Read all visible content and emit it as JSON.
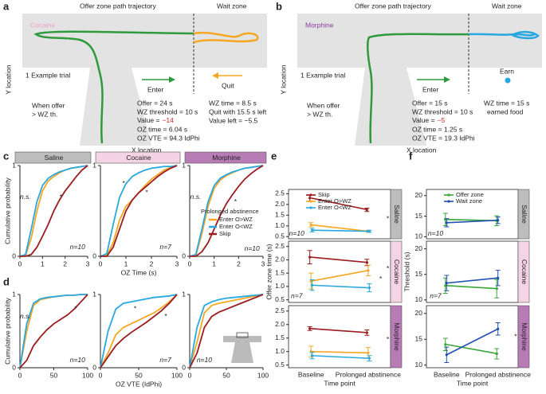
{
  "panel_labels": [
    "a",
    "b",
    "c",
    "d",
    "e",
    "f"
  ],
  "diagrams": [
    {
      "title": "Offer zone path trajectory",
      "wait_title": "Wait zone",
      "drug": "Cocaine",
      "trial": "1 Example trial",
      "enter": "Enter",
      "outcome": "Quit",
      "when": [
        "When offer",
        "> WZ th."
      ],
      "offer_info": [
        "Offer = 24 s",
        "WZ threshold = 10 s",
        "OZ time = 6.04 s",
        "OZ VTE = 94.3 IdPhi"
      ],
      "value_label": "Value =",
      "value": "−14",
      "wait_info": [
        "WZ time = 8.5 s",
        "Quit with 15.5 s left",
        "Value left = −5.5"
      ],
      "xlabel": "X location",
      "ylabel": "Y location"
    },
    {
      "title": "Offer zone path trajectory",
      "wait_title": "Wait zone",
      "drug": "Morphine",
      "trial": "1 Example trial",
      "enter": "Enter",
      "outcome": "Earn",
      "when": [
        "When offer",
        "> WZ th."
      ],
      "offer_info": [
        "Offer = 15 s",
        "WZ threshold = 10 s",
        "OZ time = 1.25 s",
        "OZ VTE = 19.3 IdPhi"
      ],
      "value_label": "Value =",
      "value": "−5",
      "wait_info": [
        "WZ time = 15 s",
        "earned food"
      ],
      "xlabel": "X location",
      "ylabel": "Y location"
    }
  ],
  "chart_data": [
    {
      "type": "line",
      "title": "Saline",
      "title_color": "#bdbdbd",
      "ylabel": "Cumulative probability",
      "x": [
        0,
        0.25,
        0.5,
        0.75,
        1,
        1.25,
        1.5,
        1.75,
        2,
        2.25,
        2.5,
        2.75,
        3
      ],
      "xlim": [
        0,
        3
      ],
      "xticks": [
        0,
        1,
        2,
        3
      ],
      "ylim": [
        0,
        1
      ],
      "yticks": [
        0,
        1
      ],
      "series": [
        {
          "color": "#f5a623",
          "values": [
            0,
            0.01,
            0.2,
            0.5,
            0.72,
            0.83,
            0.88,
            0.92,
            0.95,
            0.97,
            0.98,
            0.99,
            1
          ]
        },
        {
          "color": "#29a8e0",
          "values": [
            0,
            0.02,
            0.3,
            0.6,
            0.78,
            0.86,
            0.9,
            0.93,
            0.95,
            0.97,
            0.98,
            0.99,
            1
          ]
        },
        {
          "color": "#9b1b1e",
          "values": [
            0,
            0,
            0.02,
            0.1,
            0.22,
            0.35,
            0.5,
            0.62,
            0.72,
            0.8,
            0.88,
            0.95,
            1
          ]
        }
      ],
      "annotations": [
        "n.s.",
        "*",
        "n=10"
      ]
    },
    {
      "type": "line",
      "title": "Cocaine",
      "title_color": "#f4d4e4",
      "xlabel": "OZ Time (s)",
      "x": [
        0,
        0.25,
        0.5,
        0.75,
        1,
        1.25,
        1.5,
        1.75,
        2,
        2.25,
        2.5,
        2.75,
        3
      ],
      "xlim": [
        0,
        3
      ],
      "xticks": [
        0,
        1,
        2,
        3
      ],
      "ylim": [
        0,
        1
      ],
      "yticks": [
        0,
        1
      ],
      "series": [
        {
          "color": "#f5a623",
          "values": [
            0,
            0.01,
            0.15,
            0.4,
            0.55,
            0.62,
            0.7,
            0.78,
            0.85,
            0.9,
            0.95,
            0.98,
            1
          ]
        },
        {
          "color": "#29a8e0",
          "values": [
            0,
            0.03,
            0.35,
            0.65,
            0.8,
            0.88,
            0.92,
            0.95,
            0.97,
            0.98,
            0.99,
            0.99,
            1
          ]
        },
        {
          "color": "#9b1b1e",
          "values": [
            0,
            0,
            0.1,
            0.3,
            0.5,
            0.62,
            0.7,
            0.76,
            0.82,
            0.88,
            0.93,
            0.97,
            1
          ]
        }
      ],
      "annotations": [
        "*",
        "*",
        "n=7"
      ]
    },
    {
      "type": "line",
      "title": "Morphine",
      "title_color": "#b77bb5",
      "legend_title": "Prolonged abstinence",
      "x": [
        0,
        0.25,
        0.5,
        0.75,
        1,
        1.25,
        1.5,
        1.75,
        2,
        2.25,
        2.5,
        2.75,
        3
      ],
      "xlim": [
        0,
        3
      ],
      "xticks": [
        0,
        1,
        2,
        3
      ],
      "ylim": [
        0,
        1
      ],
      "yticks": [
        0,
        1
      ],
      "series": [
        {
          "name": "Enter O>WZ",
          "color": "#f5a623",
          "values": [
            0,
            0.01,
            0.25,
            0.55,
            0.75,
            0.84,
            0.89,
            0.92,
            0.95,
            0.97,
            0.98,
            0.99,
            1
          ]
        },
        {
          "name": "Enter O<WZ",
          "color": "#29a8e0",
          "values": [
            0,
            0.02,
            0.3,
            0.6,
            0.78,
            0.86,
            0.9,
            0.93,
            0.95,
            0.97,
            0.98,
            0.99,
            1
          ]
        },
        {
          "name": "Skip",
          "color": "#9b1b1e",
          "values": [
            0,
            0,
            0.05,
            0.15,
            0.3,
            0.45,
            0.58,
            0.68,
            0.77,
            0.85,
            0.91,
            0.96,
            1
          ]
        }
      ],
      "annotations": [
        "n.s.",
        "*",
        "n=10"
      ]
    },
    {
      "type": "line",
      "ylabel": "Cumulative probability",
      "x": [
        0,
        10,
        20,
        30,
        40,
        50,
        60,
        70,
        80,
        90,
        100
      ],
      "xlim": [
        0,
        100
      ],
      "xticks": [
        0,
        50,
        100
      ],
      "ylim": [
        0,
        1
      ],
      "yticks": [
        0,
        1
      ],
      "series": [
        {
          "color": "#f5a623",
          "values": [
            0,
            0.5,
            0.85,
            0.93,
            0.95,
            0.97,
            0.98,
            0.99,
            0.99,
            1,
            1
          ]
        },
        {
          "color": "#29a8e0",
          "values": [
            0,
            0.6,
            0.88,
            0.94,
            0.96,
            0.97,
            0.98,
            0.99,
            0.99,
            1,
            1
          ]
        },
        {
          "color": "#9b1b1e",
          "values": [
            0,
            0.1,
            0.3,
            0.42,
            0.52,
            0.6,
            0.66,
            0.72,
            0.8,
            0.9,
            1
          ]
        }
      ],
      "annotations": [
        "n.s.",
        "*",
        "n=10"
      ]
    },
    {
      "type": "line",
      "xlabel": "OZ VTE (IdPhi)",
      "x": [
        0,
        10,
        20,
        30,
        40,
        50,
        60,
        70,
        80,
        90,
        100
      ],
      "xlim": [
        0,
        100
      ],
      "xticks": [
        0,
        50,
        100
      ],
      "ylim": [
        0,
        1
      ],
      "yticks": [
        0,
        1
      ],
      "series": [
        {
          "color": "#f5a623",
          "values": [
            0,
            0.2,
            0.45,
            0.55,
            0.6,
            0.65,
            0.7,
            0.75,
            0.82,
            0.9,
            1
          ]
        },
        {
          "color": "#29a8e0",
          "values": [
            0,
            0.5,
            0.8,
            0.88,
            0.9,
            0.92,
            0.94,
            0.96,
            0.97,
            0.98,
            1
          ]
        },
        {
          "color": "#9b1b1e",
          "values": [
            0,
            0.15,
            0.3,
            0.4,
            0.48,
            0.55,
            0.62,
            0.7,
            0.78,
            0.88,
            1
          ]
        }
      ],
      "annotations": [
        "*",
        "*",
        "n=7"
      ]
    },
    {
      "type": "line",
      "x": [
        0,
        10,
        20,
        30,
        40,
        50,
        60,
        70,
        80,
        90,
        100
      ],
      "xlim": [
        0,
        100
      ],
      "xticks": [
        0,
        50,
        100
      ],
      "ylim": [
        0,
        1
      ],
      "yticks": [
        0,
        1
      ],
      "series": [
        {
          "color": "#f5a623",
          "values": [
            0,
            0.35,
            0.75,
            0.85,
            0.88,
            0.9,
            0.92,
            0.94,
            0.96,
            0.98,
            1
          ]
        },
        {
          "color": "#29a8e0",
          "values": [
            0,
            0.55,
            0.85,
            0.9,
            0.93,
            0.95,
            0.96,
            0.97,
            0.98,
            0.99,
            1
          ]
        },
        {
          "color": "#9b1b1e",
          "values": [
            0,
            0.2,
            0.55,
            0.7,
            0.76,
            0.8,
            0.84,
            0.88,
            0.92,
            0.96,
            1
          ]
        }
      ],
      "annotations": [
        "n=10"
      ]
    },
    {
      "type": "errorbar",
      "condition": "Saline",
      "condition_color": "#bdbdbd",
      "ylim": [
        0.4,
        2.7
      ],
      "yticks": [
        {
          "value": 0.5,
          "label": "0.5"
        },
        {
          "value": 1,
          "label": "1.0"
        },
        {
          "value": 1.5,
          "label": "1.5"
        },
        {
          "value": 2,
          "label": "2.0"
        },
        {
          "value": 2.5,
          "label": "2.5"
        }
      ],
      "series": [
        {
          "name": "Skip",
          "color": "#9b1b1e",
          "values": [
            2.3,
            1.75
          ],
          "errors": [
            0.15,
            0.08
          ]
        },
        {
          "name": "Enter O>WZ",
          "color": "#f5a623",
          "values": [
            1.05,
            0.75
          ],
          "errors": [
            0.1,
            0.05
          ]
        },
        {
          "name": "Enter O<WZ",
          "color": "#29a8e0",
          "values": [
            0.8,
            0.75
          ],
          "errors": [
            0.08,
            0.05
          ]
        }
      ],
      "annotations": [
        "*",
        "n=10"
      ]
    },
    {
      "type": "errorbar",
      "condition": "Cocaine",
      "condition_color": "#f4d4e4",
      "ylabel": "Offer zone time (s)",
      "ylim": [
        0.4,
        2.7
      ],
      "yticks": [
        {
          "value": 0.5,
          "label": "0.5"
        },
        {
          "value": 1,
          "label": "1.0"
        },
        {
          "value": 1.5,
          "label": "1.5"
        },
        {
          "value": 2,
          "label": "2.0"
        },
        {
          "value": 2.5,
          "label": "2.5"
        }
      ],
      "series": [
        {
          "color": "#9b1b1e",
          "values": [
            2.1,
            1.9
          ],
          "errors": [
            0.25,
            0.12
          ]
        },
        {
          "color": "#f5a623",
          "values": [
            1.2,
            1.6
          ],
          "errors": [
            0.3,
            0.2
          ]
        },
        {
          "color": "#29a8e0",
          "values": [
            1.05,
            0.95
          ],
          "errors": [
            0.2,
            0.15
          ]
        }
      ],
      "annotations": [
        "*",
        "*",
        "n=7"
      ]
    },
    {
      "type": "errorbar",
      "condition": "Morphine",
      "condition_color": "#b77bb5",
      "categories": [
        "Baseline",
        "Prolonged abstinence"
      ],
      "xlabel": "Time point",
      "ylim": [
        0.4,
        2.7
      ],
      "yticks": [
        {
          "value": 0.5,
          "label": "0.5"
        },
        {
          "value": 1,
          "label": "1.0"
        },
        {
          "value": 1.5,
          "label": "1.5"
        },
        {
          "value": 2,
          "label": "2.0"
        },
        {
          "value": 2.5,
          "label": "2.5"
        }
      ],
      "series": [
        {
          "color": "#9b1b1e",
          "values": [
            1.85,
            1.7
          ],
          "errors": [
            0.07,
            0.1
          ]
        },
        {
          "color": "#f5a623",
          "values": [
            1.0,
            0.95
          ],
          "errors": [
            0.2,
            0.2
          ]
        },
        {
          "color": "#29a8e0",
          "values": [
            0.85,
            0.75
          ],
          "errors": [
            0.12,
            0.1
          ]
        }
      ],
      "annotations": [
        "*"
      ]
    },
    {
      "type": "errorbar",
      "condition": "Saline",
      "condition_color": "#bdbdbd",
      "ylim": [
        9.5,
        21.5
      ],
      "yticks": [
        10,
        15,
        20
      ],
      "series": [
        {
          "name": "Offer zone",
          "color": "#3aa53a",
          "values": [
            14.2,
            13.9
          ],
          "errors": [
            1.5,
            1.2
          ]
        },
        {
          "name": "Wait zone",
          "color": "#1f4fb0",
          "values": [
            13.4,
            14.0
          ],
          "errors": [
            1.0,
            0.8
          ]
        }
      ],
      "annotations": [
        "n=10"
      ]
    },
    {
      "type": "errorbar",
      "condition": "Cocaine",
      "condition_color": "#f4d4e4",
      "ylabel": "Threshold (s)",
      "ylim": [
        9.5,
        21.5
      ],
      "yticks": [
        10,
        15,
        20
      ],
      "series": [
        {
          "color": "#3aa53a",
          "values": [
            12.8,
            12.2
          ],
          "errors": [
            1.5,
            1.8
          ]
        },
        {
          "color": "#1f4fb0",
          "values": [
            13.3,
            14.3
          ],
          "errors": [
            1.5,
            1.5
          ]
        }
      ],
      "annotations": [
        "n=7"
      ]
    },
    {
      "type": "errorbar",
      "condition": "Morphine",
      "condition_color": "#b77bb5",
      "categories": [
        "Baseline",
        "Prolonged abstinence"
      ],
      "xlabel": "Time point",
      "ylim": [
        9.5,
        21.5
      ],
      "yticks": [
        10,
        15,
        20
      ],
      "series": [
        {
          "color": "#3aa53a",
          "values": [
            14.0,
            12.2
          ],
          "errors": [
            1.2,
            1.0
          ]
        },
        {
          "color": "#1f4fb0",
          "values": [
            12.0,
            17.0
          ],
          "errors": [
            1.5,
            1.2
          ]
        }
      ],
      "annotations": [
        "*"
      ]
    }
  ]
}
